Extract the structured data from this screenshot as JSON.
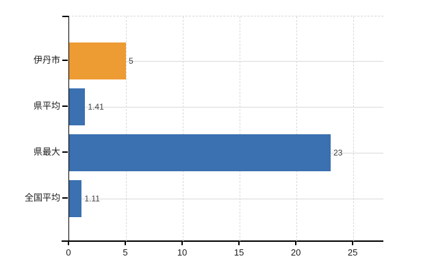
{
  "chart_data": {
    "type": "bar",
    "orientation": "horizontal",
    "title": "",
    "xlabel": "",
    "ylabel": "",
    "categories": [
      "伊丹市",
      "県平均",
      "県最大",
      "全国平均"
    ],
    "values": [
      5,
      1.41,
      23,
      1.11
    ],
    "value_labels": [
      "5",
      "1.41",
      "23",
      "1.11"
    ],
    "bar_colors": [
      "#ED9B33",
      "#3B70B1",
      "#3B70B1",
      "#3B70B1"
    ],
    "x_ticks": [
      0,
      5,
      10,
      15,
      20,
      25
    ],
    "x_tick_labels": [
      "0",
      "5",
      "10",
      "15",
      "20",
      "25"
    ],
    "xlim": [
      0,
      27.7
    ],
    "grid": {
      "vertical": "dashed",
      "horizontal": "solid",
      "color": "#d9d9d9"
    },
    "legend": "none",
    "background_color": "#ffffff",
    "axis_color": "#000000",
    "value_label_color": "#404040",
    "tick_label_color": "#1a1a1a"
  }
}
